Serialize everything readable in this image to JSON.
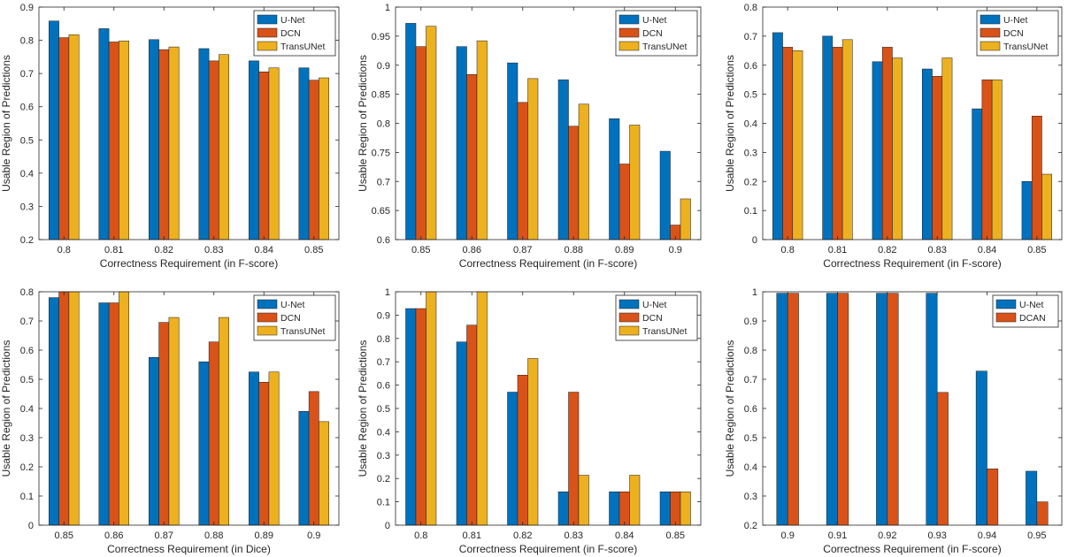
{
  "colors": {
    "series": [
      "#0072BD",
      "#D95319",
      "#EDB120"
    ],
    "axis": "#262626",
    "bar_edge": "#1a1a1a"
  },
  "chart_data": [
    {
      "type": "bar",
      "title": "",
      "xlabel": "Correctness Requirement (in F-score)",
      "ylabel": "Usable Region of Predictions",
      "categories": [
        "0.8",
        "0.81",
        "0.82",
        "0.83",
        "0.84",
        "0.85"
      ],
      "ylim": [
        0.2,
        0.9
      ],
      "yticks": [
        "0.2",
        "0.3",
        "0.4",
        "0.5",
        "0.6",
        "0.7",
        "0.8",
        "0.9"
      ],
      "legend": "top-right",
      "series": [
        {
          "name": "U-Net",
          "values": [
            0.858,
            0.835,
            0.802,
            0.775,
            0.738,
            0.717
          ]
        },
        {
          "name": "DCN",
          "values": [
            0.808,
            0.795,
            0.772,
            0.738,
            0.705,
            0.68
          ]
        },
        {
          "name": "TransUNet",
          "values": [
            0.817,
            0.798,
            0.78,
            0.757,
            0.717,
            0.687
          ]
        }
      ]
    },
    {
      "type": "bar",
      "title": "",
      "xlabel": "Correctness Requirement (in F-score)",
      "ylabel": "Usable Region of Predictions",
      "categories": [
        "0.85",
        "0.86",
        "0.87",
        "0.88",
        "0.89",
        "0.9"
      ],
      "ylim": [
        0.6,
        1.0
      ],
      "yticks": [
        "0.6",
        "0.65",
        "0.7",
        "0.75",
        "0.8",
        "0.85",
        "0.9",
        "0.95",
        "1"
      ],
      "legend": "top-right",
      "series": [
        {
          "name": "U-Net",
          "values": [
            0.972,
            0.932,
            0.904,
            0.875,
            0.808,
            0.752
          ]
        },
        {
          "name": "DCN",
          "values": [
            0.932,
            0.884,
            0.836,
            0.795,
            0.73,
            0.625
          ]
        },
        {
          "name": "TransUNet",
          "values": [
            0.967,
            0.942,
            0.877,
            0.833,
            0.797,
            0.67
          ]
        }
      ]
    },
    {
      "type": "bar",
      "title": "",
      "xlabel": "Correctness Requirement (in F-score)",
      "ylabel": "Usable Region of Predictions",
      "categories": [
        "0.8",
        "0.81",
        "0.82",
        "0.83",
        "0.84",
        "0.85"
      ],
      "ylim": [
        0,
        0.8
      ],
      "yticks": [
        "0",
        "0.1",
        "0.2",
        "0.3",
        "0.4",
        "0.5",
        "0.6",
        "0.7",
        "0.8"
      ],
      "legend": "top-right",
      "series": [
        {
          "name": "U-Net",
          "values": [
            0.712,
            0.7,
            0.612,
            0.587,
            0.45,
            0.2
          ]
        },
        {
          "name": "DCN",
          "values": [
            0.662,
            0.662,
            0.662,
            0.562,
            0.55,
            0.425
          ]
        },
        {
          "name": "TransUNet",
          "values": [
            0.65,
            0.688,
            0.625,
            0.625,
            0.55,
            0.225
          ]
        }
      ]
    },
    {
      "type": "bar",
      "title": "",
      "xlabel": "Correctness Requirement (in Dice)",
      "ylabel": "Usable Region of Predictions",
      "categories": [
        "0.85",
        "0.86",
        "0.87",
        "0.88",
        "0.89",
        "0.9"
      ],
      "ylim": [
        0,
        0.8
      ],
      "yticks": [
        "0",
        "0.1",
        "0.2",
        "0.3",
        "0.4",
        "0.5",
        "0.6",
        "0.7",
        "0.8"
      ],
      "legend": "top-right",
      "series": [
        {
          "name": "U-Net",
          "values": [
            0.78,
            0.762,
            0.575,
            0.56,
            0.525,
            0.39
          ]
        },
        {
          "name": "DCN",
          "values": [
            0.8,
            0.762,
            0.695,
            0.628,
            0.49,
            0.458
          ]
        },
        {
          "name": "TransUNet",
          "values": [
            0.8,
            0.8,
            0.712,
            0.712,
            0.525,
            0.355
          ]
        }
      ]
    },
    {
      "type": "bar",
      "title": "",
      "xlabel": "Correctness Requirement (in F-score)",
      "ylabel": "Usable Region of Predictions",
      "categories": [
        "0.8",
        "0.81",
        "0.82",
        "0.83",
        "0.84",
        "0.85"
      ],
      "ylim": [
        0,
        1
      ],
      "yticks": [
        "0",
        "0.1",
        "0.2",
        "0.3",
        "0.4",
        "0.5",
        "0.6",
        "0.7",
        "0.8",
        "0.9",
        "1"
      ],
      "legend": "top-right",
      "series": [
        {
          "name": "U-Net",
          "values": [
            0.928,
            0.785,
            0.57,
            0.143,
            0.143,
            0.143
          ]
        },
        {
          "name": "DCN",
          "values": [
            0.928,
            0.857,
            0.643,
            0.57,
            0.143,
            0.143
          ]
        },
        {
          "name": "TransUNet",
          "values": [
            1.0,
            1.0,
            0.714,
            0.214,
            0.214,
            0.143
          ]
        }
      ]
    },
    {
      "type": "bar",
      "title": "",
      "xlabel": "Correctness Requirement (in F-score)",
      "ylabel": "Usable Region of Predictions",
      "categories": [
        "0.9",
        "0.91",
        "0.92",
        "0.93",
        "0.94",
        "0.95"
      ],
      "ylim": [
        0.2,
        1
      ],
      "yticks": [
        "0.2",
        "0.3",
        "0.4",
        "0.5",
        "0.6",
        "0.7",
        "0.8",
        "0.9",
        "1"
      ],
      "legend": "top-right",
      "series": [
        {
          "name": "U-Net",
          "values": [
            0.995,
            0.995,
            0.995,
            0.995,
            0.728,
            0.385
          ]
        },
        {
          "name": "DCAN",
          "values": [
            0.995,
            0.995,
            0.995,
            0.655,
            0.393,
            0.28
          ]
        }
      ]
    }
  ]
}
